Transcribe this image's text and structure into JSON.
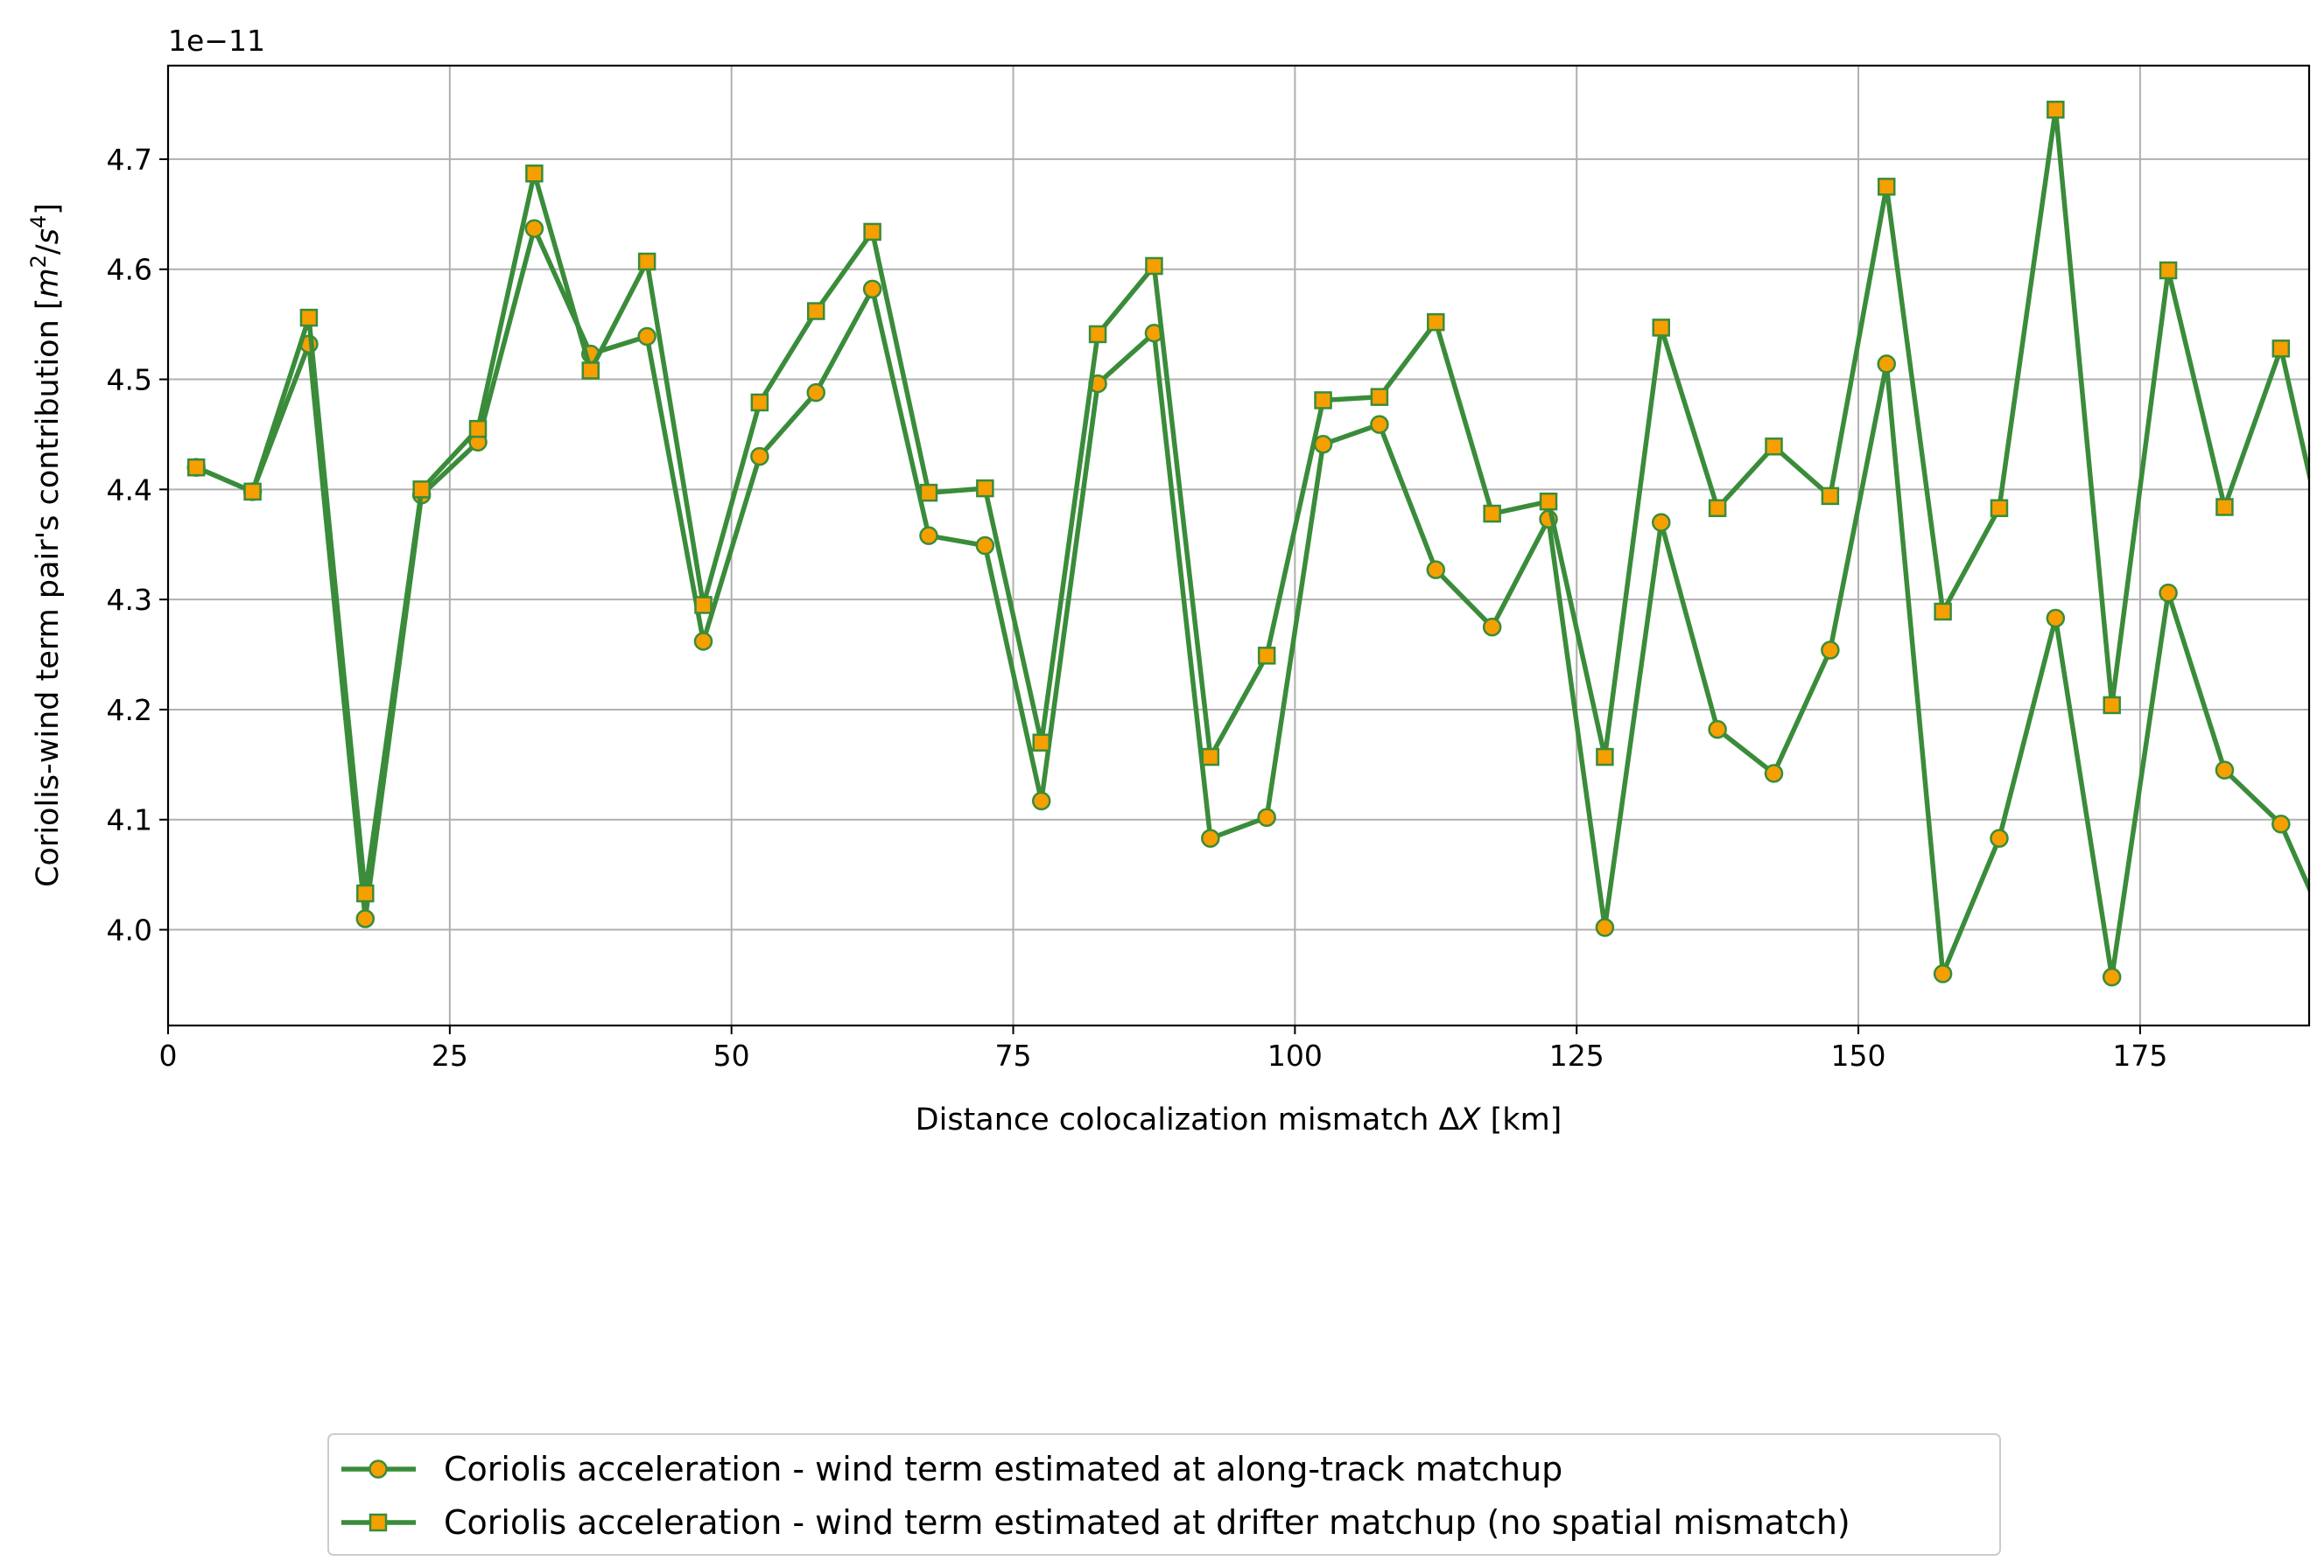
{
  "chart_data": {
    "type": "line",
    "offset_text": "1e−11",
    "xlabel_prefix": "Distance colocalization mismatch Δ",
    "xlabel_var": "X",
    "xlabel_suffix": " [km]",
    "ylabel_prefix": "Coriolis-wind term pair's contribution [",
    "ylabel_unit_m": "m",
    "ylabel_exp_2": "2",
    "ylabel_slash": "/",
    "ylabel_unit_s": "s",
    "ylabel_exp_4": "4",
    "ylabel_suffix": "]",
    "xlim": [
      0,
      190
    ],
    "ylim": [
      3.913,
      4.785
    ],
    "xticks": [
      0,
      25,
      50,
      75,
      100,
      125,
      150,
      175
    ],
    "xtick_labels": [
      "0",
      "25",
      "50",
      "75",
      "100",
      "125",
      "150",
      "175"
    ],
    "yticks": [
      4.0,
      4.1,
      4.2,
      4.3,
      4.4,
      4.5,
      4.6,
      4.7
    ],
    "ytick_labels": [
      "4.0",
      "4.1",
      "4.2",
      "4.3",
      "4.4",
      "4.5",
      "4.6",
      "4.7"
    ],
    "grid": true,
    "legend_position": "below plot, centered",
    "colors": {
      "line": "#3a8c3a",
      "marker_fill": "#f5a000",
      "grid": "#b0b0b0"
    },
    "x": [
      2.5,
      7.5,
      12.5,
      17.5,
      22.5,
      27.5,
      32.5,
      37.5,
      42.5,
      47.5,
      52.5,
      57.5,
      62.5,
      67.5,
      72.5,
      77.5,
      82.5,
      87.5,
      92.5,
      97.5,
      102.5,
      107.5,
      112.5,
      117.5,
      122.5,
      127.5,
      132.5,
      137.5,
      142.5,
      147.5,
      152.5,
      157.5,
      162.5,
      167.5,
      172.5,
      177.5,
      182.5,
      187.5,
      192.5
    ],
    "series": [
      {
        "name": "Coriolis acceleration - wind term estimated at along-track matchup",
        "marker": "circle",
        "values": [
          4.42,
          4.398,
          4.532,
          4.01,
          4.395,
          4.443,
          4.637,
          4.523,
          4.539,
          4.262,
          4.43,
          4.488,
          4.582,
          4.358,
          4.349,
          4.117,
          4.496,
          4.542,
          4.083,
          4.102,
          4.441,
          4.459,
          4.327,
          4.275,
          4.373,
          4.002,
          4.37,
          4.182,
          4.142,
          4.254,
          4.514,
          3.96,
          4.083,
          4.283,
          3.957,
          4.306,
          4.145,
          4.096,
          3.98
        ]
      },
      {
        "name": "Coriolis acceleration - wind term estimated at drifter matchup (no spatial mismatch)",
        "marker": "square",
        "values": [
          4.42,
          4.398,
          4.556,
          4.033,
          4.4,
          4.455,
          4.687,
          4.508,
          4.607,
          4.295,
          4.479,
          4.562,
          4.634,
          4.397,
          4.401,
          4.17,
          4.541,
          4.603,
          4.157,
          4.249,
          4.481,
          4.484,
          4.552,
          4.378,
          4.389,
          4.157,
          4.547,
          4.383,
          4.439,
          4.394,
          4.675,
          4.289,
          4.383,
          4.745,
          4.204,
          4.599,
          4.384,
          4.528,
          4.3
        ]
      }
    ]
  }
}
